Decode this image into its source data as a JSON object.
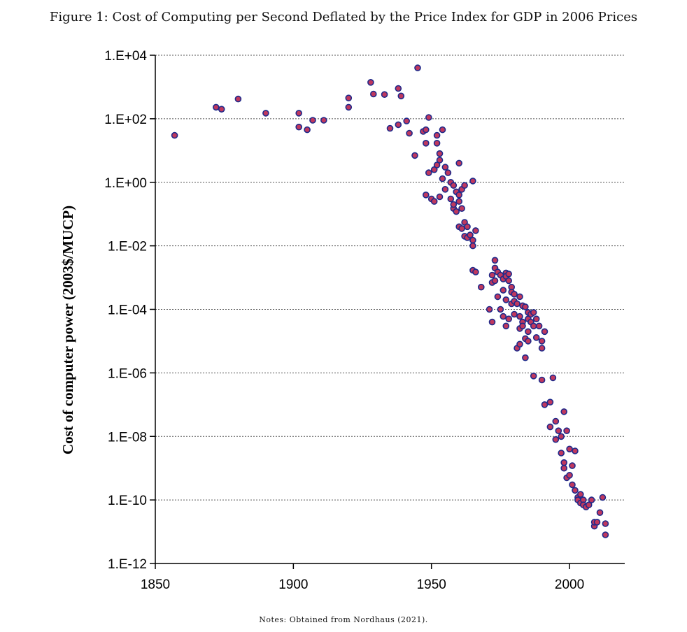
{
  "figure": {
    "title": "Figure 1: Cost of Computing per Second Deflated by the Price Index for GDP in 2006 Prices",
    "notes": "Notes: Obtained from Nordhaus (2021)."
  },
  "colors": {
    "marker_fill": "#c0385e",
    "marker_stroke": "#1f2a8a",
    "grid": "#555555",
    "axis": "#000000"
  },
  "chart_data": {
    "type": "scatter",
    "title": "",
    "xlabel": "",
    "ylabel": "Cost of computer power (2003$/MUCP)",
    "xlim": [
      1850,
      2020
    ],
    "ylim_log10": [
      -12,
      4
    ],
    "y_scale": "log",
    "grid": "horizontal",
    "x_ticks": [
      1850,
      1900,
      1950,
      2000
    ],
    "y_ticks": [
      "1.E+04",
      "1.E+02",
      "1.E+00",
      "1.E-02",
      "1.E-04",
      "1.E-06",
      "1.E-08",
      "1.E-10",
      "1.E-12"
    ],
    "points": [
      [
        1857,
        30
      ],
      [
        1872,
        230
      ],
      [
        1874,
        200
      ],
      [
        1880,
        420
      ],
      [
        1890,
        150
      ],
      [
        1902,
        150
      ],
      [
        1902,
        55
      ],
      [
        1905,
        45
      ],
      [
        1907,
        90
      ],
      [
        1911,
        90
      ],
      [
        1920,
        450
      ],
      [
        1920,
        230
      ],
      [
        1928,
        1400
      ],
      [
        1929,
        600
      ],
      [
        1933,
        580
      ],
      [
        1935,
        50
      ],
      [
        1938,
        900
      ],
      [
        1938,
        65
      ],
      [
        1939,
        520
      ],
      [
        1941,
        85
      ],
      [
        1942,
        35
      ],
      [
        1944,
        7
      ],
      [
        1945,
        4000
      ],
      [
        1947,
        40
      ],
      [
        1948,
        45
      ],
      [
        1948,
        17
      ],
      [
        1949,
        110
      ],
      [
        1948,
        0.4
      ],
      [
        1949,
        2
      ],
      [
        1950,
        0.3
      ],
      [
        1951,
        0.25
      ],
      [
        1951,
        2.5
      ],
      [
        1952,
        30
      ],
      [
        1952,
        17
      ],
      [
        1952,
        3.5
      ],
      [
        1953,
        8
      ],
      [
        1953,
        5
      ],
      [
        1953,
        0.35
      ],
      [
        1954,
        1.3
      ],
      [
        1954,
        45
      ],
      [
        1955,
        3
      ],
      [
        1955,
        0.6
      ],
      [
        1956,
        2
      ],
      [
        1957,
        1
      ],
      [
        1957,
        0.3
      ],
      [
        1958,
        0.8
      ],
      [
        1958,
        0.15
      ],
      [
        1958,
        0.2
      ],
      [
        1959,
        0.5
      ],
      [
        1959,
        0.12
      ],
      [
        1960,
        0.4
      ],
      [
        1960,
        4
      ],
      [
        1960,
        0.25
      ],
      [
        1960,
        0.04
      ],
      [
        1961,
        0.6
      ],
      [
        1961,
        0.15
      ],
      [
        1961,
        0.035
      ],
      [
        1962,
        0.8
      ],
      [
        1962,
        0.055
      ],
      [
        1962,
        0.02
      ],
      [
        1963,
        0.04
      ],
      [
        1963,
        0.018
      ],
      [
        1964,
        0.022
      ],
      [
        1965,
        1.1
      ],
      [
        1965,
        0.015
      ],
      [
        1965,
        0.01
      ],
      [
        1965,
        0.0017
      ],
      [
        1966,
        0.03
      ],
      [
        1966,
        0.0015
      ],
      [
        1968,
        0.0005
      ],
      [
        1971,
        0.0001
      ],
      [
        1972,
        0.0012
      ],
      [
        1972,
        0.0007
      ],
      [
        1972,
        4e-05
      ],
      [
        1973,
        0.002
      ],
      [
        1973,
        0.0035
      ],
      [
        1973,
        0.0008
      ],
      [
        1974,
        0.0015
      ],
      [
        1974,
        0.00025
      ],
      [
        1975,
        0.0012
      ],
      [
        1975,
        0.0001
      ],
      [
        1976,
        0.0009
      ],
      [
        1976,
        0.0004
      ],
      [
        1976,
        6e-05
      ],
      [
        1977,
        0.0014
      ],
      [
        1977,
        0.0011
      ],
      [
        1977,
        0.0002
      ],
      [
        1977,
        3e-05
      ],
      [
        1978,
        0.0013
      ],
      [
        1978,
        0.0008
      ],
      [
        1978,
        5e-05
      ],
      [
        1979,
        0.0005
      ],
      [
        1979,
        0.00035
      ],
      [
        1979,
        0.00015
      ],
      [
        1980,
        0.0003
      ],
      [
        1980,
        0.00018
      ],
      [
        1980,
        7e-05
      ],
      [
        1981,
        0.00015
      ],
      [
        1981,
        6e-06
      ],
      [
        1982,
        0.00025
      ],
      [
        1982,
        6e-05
      ],
      [
        1982,
        2.5e-05
      ],
      [
        1982,
        8e-06
      ],
      [
        1983,
        0.00013
      ],
      [
        1983,
        4e-05
      ],
      [
        1983,
        3e-05
      ],
      [
        1984,
        0.00012
      ],
      [
        1984,
        3e-06
      ],
      [
        1984,
        1.2e-05
      ],
      [
        1985,
        8e-05
      ],
      [
        1985,
        5e-05
      ],
      [
        1985,
        2e-05
      ],
      [
        1985,
        1e-05
      ],
      [
        1986,
        7e-05
      ],
      [
        1986,
        4e-05
      ],
      [
        1987,
        8e-05
      ],
      [
        1987,
        3e-05
      ],
      [
        1987,
        8e-07
      ],
      [
        1988,
        5e-05
      ],
      [
        1988,
        1.3e-05
      ],
      [
        1989,
        3e-05
      ],
      [
        1990,
        6e-07
      ],
      [
        1990,
        1e-05
      ],
      [
        1990,
        6e-06
      ],
      [
        1991,
        2e-05
      ],
      [
        1991,
        1e-07
      ],
      [
        1993,
        1.2e-07
      ],
      [
        1993,
        2e-08
      ],
      [
        1994,
        7e-07
      ],
      [
        1995,
        3e-08
      ],
      [
        1995,
        8e-09
      ],
      [
        1996,
        1.5e-08
      ],
      [
        1997,
        1e-08
      ],
      [
        1997,
        3e-09
      ],
      [
        1998,
        6e-08
      ],
      [
        1998,
        1.5e-09
      ],
      [
        1998,
        1e-09
      ],
      [
        1999,
        1.5e-08
      ],
      [
        1999,
        5e-10
      ],
      [
        2000,
        4e-09
      ],
      [
        2000,
        6e-10
      ],
      [
        2001,
        1.2e-09
      ],
      [
        2001,
        3e-10
      ],
      [
        2002,
        3.5e-09
      ],
      [
        2002,
        2e-10
      ],
      [
        2003,
        1.2e-10
      ],
      [
        2003,
        1e-10
      ],
      [
        2004,
        1.5e-10
      ],
      [
        2004,
        8e-11
      ],
      [
        2005,
        1e-10
      ],
      [
        2005,
        7e-11
      ],
      [
        2006,
        6e-11
      ],
      [
        2007,
        7e-11
      ],
      [
        2008,
        1e-10
      ],
      [
        2009,
        1.5e-11
      ],
      [
        2009,
        2e-11
      ],
      [
        2010,
        2e-11
      ],
      [
        2011,
        4e-11
      ],
      [
        2012,
        1.2e-10
      ],
      [
        2013,
        1.8e-11
      ],
      [
        2013,
        8e-12
      ]
    ]
  }
}
